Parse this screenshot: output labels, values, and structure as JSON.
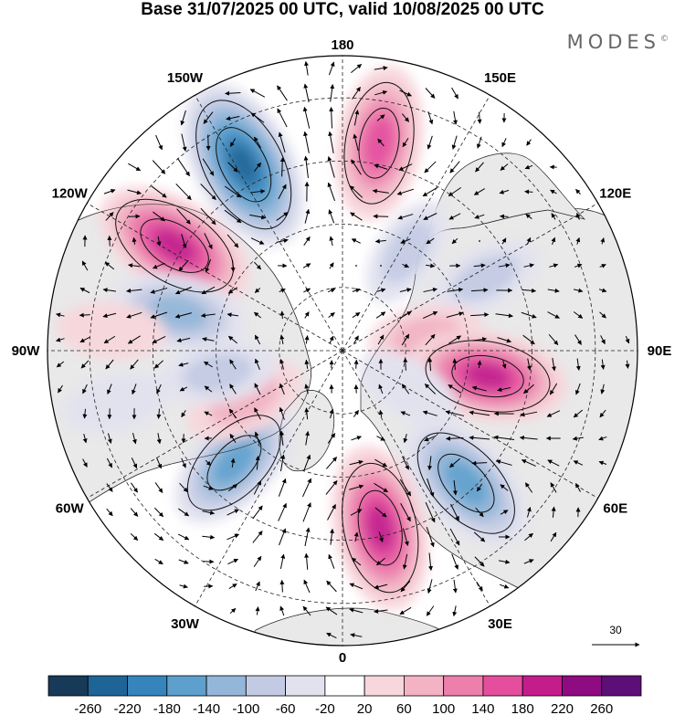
{
  "title": "Base 31/07/2025 00 UTC, valid 10/08/2025 00 UTC",
  "brand": {
    "name": "MODES",
    "mark": "©"
  },
  "meridian_labels": [
    {
      "text": "180",
      "lon": 180
    },
    {
      "text": "150E",
      "lon": 150
    },
    {
      "text": "120E",
      "lon": 120
    },
    {
      "text": "90E",
      "lon": 90
    },
    {
      "text": "60E",
      "lon": 60
    },
    {
      "text": "30E",
      "lon": 30
    },
    {
      "text": "0",
      "lon": 0
    },
    {
      "text": "30W",
      "lon": -30
    },
    {
      "text": "60W",
      "lon": -60
    },
    {
      "text": "90W",
      "lon": -90
    },
    {
      "text": "120W",
      "lon": -120
    },
    {
      "text": "150W",
      "lon": -150
    }
  ],
  "reference_vector": {
    "label": "30"
  },
  "colorbar": {
    "tick_labels": [
      "-260",
      "-220",
      "-180",
      "-140",
      "-100",
      "-60",
      "-20",
      "20",
      "60",
      "100",
      "140",
      "180",
      "220",
      "260"
    ],
    "colors": [
      "#163a58",
      "#1f6497",
      "#3585bc",
      "#5ea0cd",
      "#93b6d9",
      "#c3cbe4",
      "#e2e2ef",
      "#ffffff",
      "#f7d6dc",
      "#f3b3c4",
      "#ec7fac",
      "#e44e9d",
      "#c31d8c",
      "#8e0b82",
      "#5c0f76"
    ]
  },
  "colors": {
    "land_bg": "#e9e9e9",
    "ocean_bg": "#ffffff"
  },
  "anomalies": [
    {
      "lon": -152,
      "lat": 40,
      "value": -230
    },
    {
      "lon": 170,
      "lat": 40,
      "value": 170
    },
    {
      "lon": -122,
      "lat": 43,
      "value": 200
    },
    {
      "lon": -103,
      "lat": 50,
      "value": -120
    },
    {
      "lon": 117,
      "lat": 52,
      "value": -60
    },
    {
      "lon": 100,
      "lat": 70,
      "value": 60
    },
    {
      "lon": 80,
      "lat": 55,
      "value": 180
    },
    {
      "lon": 43,
      "lat": 47,
      "value": -170
    },
    {
      "lon": 12,
      "lat": 47,
      "value": 200
    },
    {
      "lon": -44,
      "lat": 53,
      "value": -150
    },
    {
      "lon": -63,
      "lat": 64,
      "value": 80
    },
    {
      "lon": -80,
      "lat": 60,
      "value": -60
    },
    {
      "lon": -77,
      "lat": 35,
      "value": -40
    },
    {
      "lon": -95,
      "lat": 35,
      "value": 40
    },
    {
      "lon": 147,
      "lat": 62,
      "value": -60
    },
    {
      "lon": 60,
      "lat": 72,
      "value": -40
    }
  ]
}
